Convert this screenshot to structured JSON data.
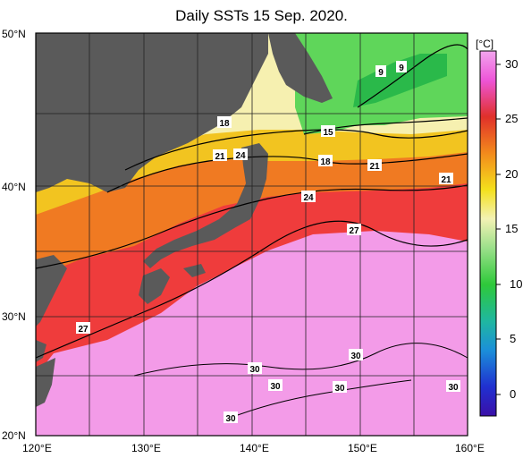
{
  "title": "Daily SSTs 15 Sep. 2020.",
  "colorbar": {
    "unit": "[°C]",
    "ticks": [
      "30",
      "25",
      "20",
      "15",
      "10",
      "5",
      "0"
    ]
  },
  "lat_labels": [
    "50°N",
    "40°N",
    "30°N",
    "20°N"
  ],
  "lon_labels": [
    "120°E",
    "130°E",
    "140°E",
    "150°E",
    "160°E"
  ],
  "contour_labels": [
    "18",
    "24",
    "21",
    "15",
    "18",
    "21",
    "21",
    "24",
    "27",
    "27",
    "9",
    "9",
    "30",
    "30",
    "30",
    "30",
    "30",
    "30"
  ],
  "colors": {
    "land": "#5a5a5a",
    "warm_pink": "#f39be8",
    "red": "#e8342c",
    "orange": "#f08a20",
    "yellow": "#f3d21a",
    "pale": "#f0f0c8",
    "green": "#4fcf4f"
  }
}
